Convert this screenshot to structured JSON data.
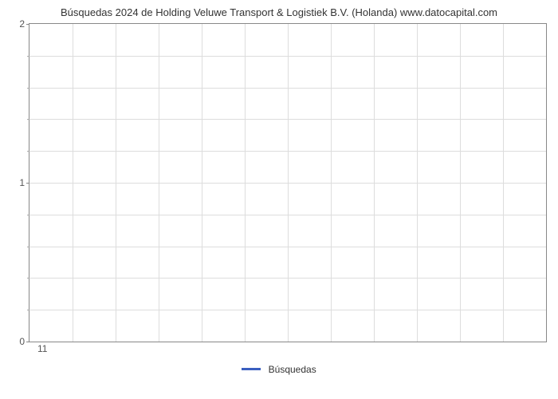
{
  "chart": {
    "type": "line",
    "title": "Búsquedas 2024 de Holding Veluwe Transport & Logistiek B.V. (Holanda) www.datocapital.com",
    "title_fontsize": 13,
    "title_color": "#333333",
    "background_color": "#ffffff",
    "border_color": "#888888",
    "grid_color": "#dddddd",
    "y_axis": {
      "min": 0,
      "max": 2,
      "major_ticks": [
        0,
        1,
        2
      ],
      "minor_ticks": [
        0.2,
        0.4,
        0.6,
        0.8,
        1.2,
        1.4,
        1.6,
        1.8
      ],
      "label_fontsize": 12,
      "label_color": "#555555"
    },
    "x_axis": {
      "major_ticks": [
        11
      ],
      "grid_divisions": 12,
      "label_fontsize": 12,
      "label_color": "#555555"
    },
    "series": [
      {
        "name": "Búsquedas",
        "color": "#3b5fc0",
        "line_width": 3,
        "data_x": [],
        "data_y": []
      }
    ],
    "legend": {
      "position": "bottom",
      "fontsize": 12,
      "label": "Búsquedas",
      "swatch_color": "#3b5fc0"
    }
  }
}
